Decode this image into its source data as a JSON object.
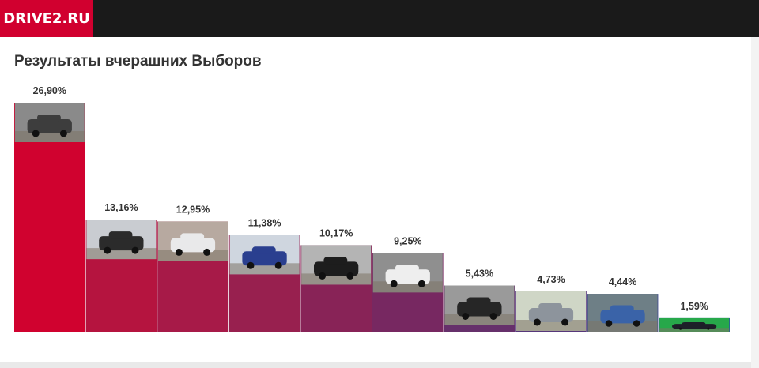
{
  "header": {
    "logo_text": "DRIVE2.RU"
  },
  "section": {
    "title": "Результаты вчерашних Выборов"
  },
  "chart_data": {
    "type": "bar",
    "title": "Результаты вчерашних Выборов",
    "categories": [
      "",
      "",
      "",
      "",
      "",
      "",
      "",
      "",
      "",
      ""
    ],
    "values": [
      26.9,
      13.16,
      12.95,
      11.38,
      10.17,
      9.25,
      5.43,
      4.73,
      4.44,
      1.59
    ],
    "labels": [
      "26,90%",
      "13,16%",
      "12,95%",
      "11,38%",
      "10,17%",
      "9,25%",
      "5,43%",
      "4,73%",
      "4,44%",
      "1,59%"
    ],
    "colors": [
      "#d0022f",
      "#b5143f",
      "#a71a48",
      "#98204f",
      "#882357",
      "#772861",
      "#66306b",
      "#56377a",
      "#3b4690",
      "#2b52a3"
    ],
    "thumbnail_tones": [
      [
        "#8a8a8a",
        "#3d3d3d"
      ],
      [
        "#c9ccd1",
        "#2b2b2b"
      ],
      [
        "#b7a9a0",
        "#e9e9ea"
      ],
      [
        "#cfd6df",
        "#2a3f8f"
      ],
      [
        "#b4b4b4",
        "#1d1d1d"
      ],
      [
        "#8f8f8f",
        "#eeeeee"
      ],
      [
        "#9a9a9a",
        "#262626"
      ],
      [
        "#cfd6c6",
        "#8d949c"
      ],
      [
        "#6e7f86",
        "#3a63a8"
      ],
      [
        "#27a84a",
        "#1d1f28"
      ]
    ],
    "xlabel": "",
    "ylabel": "",
    "ylim": [
      0,
      26.9
    ],
    "grid": false,
    "legend": "none"
  }
}
